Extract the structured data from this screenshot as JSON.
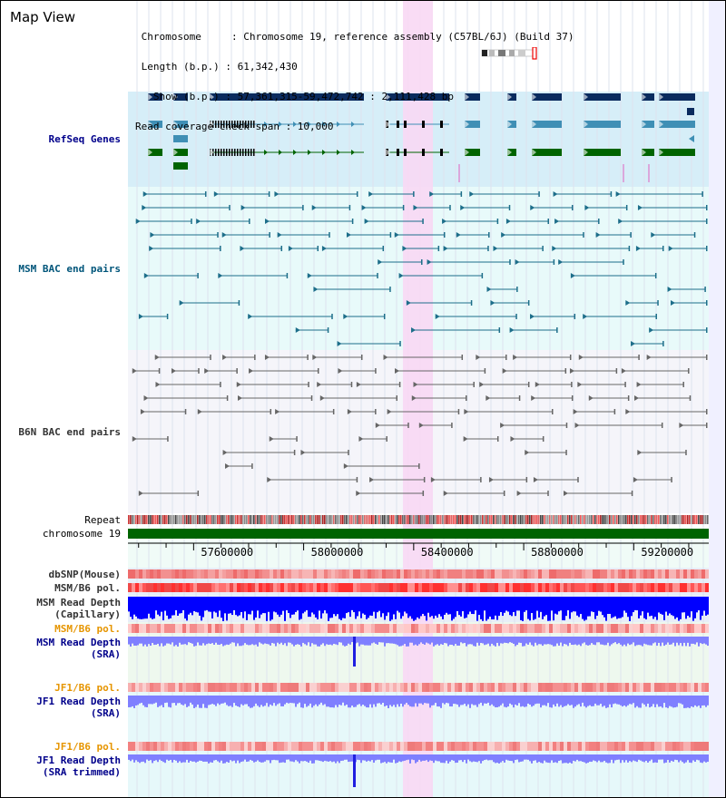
{
  "header": {
    "title": "Map View",
    "info_lines": [
      " Chromosome     : Chromosome 19, reference assembly (C57BL/6J) (Build 37)",
      " Length (b.p.) : 61,342,430",
      "   Show (b.p.) : 57,361,315-59,472,742 : 2,111,428 bp",
      "Read coverage check span : 10,000"
    ]
  },
  "tracks": {
    "refseq": "RefSeq Genes",
    "msm_bac": "MSM BAC end pairs",
    "b6n_bac": "B6N BAC end pairs",
    "repeat": "Repeat",
    "chromosome": "chromosome 19",
    "dbsnp": "dbSNP(Mouse)",
    "msm_pol": "MSM/B6 pol.",
    "msm_depth_cap": "MSM Read Depth\n(Capillary)",
    "msm_pol2": "MSM/B6 pol.",
    "msm_depth_sra": "MSM Read Depth\n(SRA)",
    "jf1_pol": "JF1/B6 pol.",
    "jf1_depth_sra": "JF1 Read Depth\n(SRA)",
    "jf1_pol2": "JF1/B6 pol.",
    "jf1_depth_trim": "JF1 Read Depth\n(SRA trimmed)"
  },
  "axis": {
    "ticks": [
      "57600000",
      "58000000",
      "58400000",
      "58800000",
      "59200000"
    ],
    "tick_values": [
      57600000,
      58000000,
      58400000,
      58800000,
      59200000
    ],
    "range": [
      57361315,
      59472742
    ]
  },
  "colors": {
    "refseq_bg": "#d6eef8",
    "msm_bg": "#e8fafa",
    "b6n_bg": "#f5f5fa",
    "highlight": "#f8d8f4",
    "gene_dark": "#0a2b5e",
    "gene_mid": "#3f8fb5",
    "gene_green": "#006400",
    "bac_teal": "#1d6e8a",
    "bac_gray": "#666666",
    "chrom_green": "#006400",
    "depth_blue": "#0000ff",
    "depth_light": "#7f7fff"
  }
}
